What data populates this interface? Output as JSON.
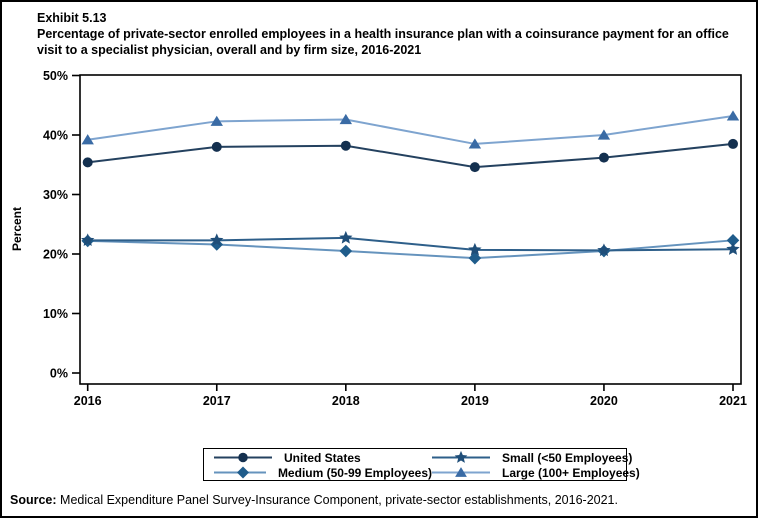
{
  "page": {
    "background": "#ffffff",
    "frame_color": "#000000"
  },
  "header": {
    "exhibit_label": "Exhibit 5.13",
    "title": "Percentage of private-sector enrolled employees in a health insurance plan with a coinsurance payment for an office visit to a specialist physician, overall and by firm size, 2016-2021"
  },
  "chart_data": {
    "type": "line",
    "x": [
      "2016",
      "2017",
      "2018",
      "2019",
      "2020",
      "2021"
    ],
    "series": [
      {
        "name": "United States",
        "marker": "circle-icon",
        "marker_color": "#14304F",
        "line_color": "#24415F",
        "values": [
          35.4,
          38.0,
          38.2,
          34.6,
          36.2,
          38.5
        ]
      },
      {
        "name": "Medium (50-99 Employees)",
        "marker": "diamond-icon",
        "marker_color": "#1F5C8B",
        "line_color": "#6593BD",
        "values": [
          22.2,
          21.6,
          20.5,
          19.3,
          20.5,
          22.3
        ]
      },
      {
        "name": "Small (<50 Employees)",
        "marker": "star-icon",
        "marker_color": "#1F4E79",
        "line_color": "#2E5F8A",
        "values": [
          22.3,
          22.3,
          22.7,
          20.7,
          20.6,
          20.8
        ]
      },
      {
        "name": "Large (100+ Employees)",
        "marker": "triangle-icon",
        "marker_color": "#3A6BA5",
        "line_color": "#7EA4CF",
        "values": [
          39.2,
          42.3,
          42.6,
          38.5,
          40.0,
          43.2
        ]
      }
    ],
    "ylabel": "Percent",
    "xlabel": "",
    "ylim": [
      0,
      50
    ],
    "yticks": [
      "0%",
      "10%",
      "20%",
      "30%",
      "40%",
      "50%"
    ],
    "grid": false,
    "legend_position": "bottom"
  },
  "legend": {
    "items": [
      {
        "series": 0
      },
      {
        "series": 2
      },
      {
        "series": 1
      },
      {
        "series": 3
      }
    ]
  },
  "source": {
    "label": "Source:",
    "text": "Medical Expenditure Panel Survey-Insurance Component, private-sector establishments, 2016-2021."
  }
}
